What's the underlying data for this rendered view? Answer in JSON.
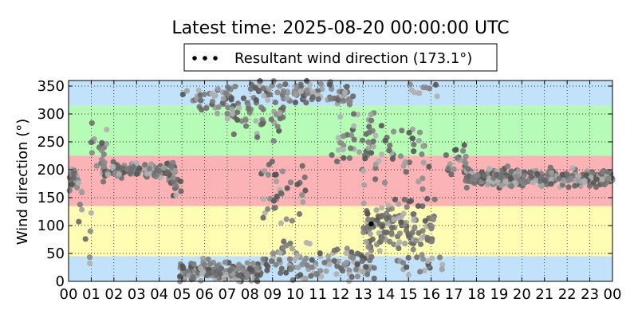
{
  "chart_data": {
    "type": "scatter",
    "title": "Latest time: 2025-08-20 00:00:00 UTC",
    "ylabel": "Wind direction (°)",
    "xlabel": "",
    "legend": {
      "label": "Resultant wind direction (173.1°)",
      "placement": "top-center"
    },
    "xlim": [
      0,
      24
    ],
    "ylim": [
      0,
      360
    ],
    "x_ticks": [
      0,
      1,
      2,
      3,
      4,
      5,
      6,
      7,
      8,
      9,
      10,
      11,
      12,
      13,
      14,
      15,
      16,
      17,
      18,
      19,
      20,
      21,
      22,
      23,
      24
    ],
    "x_tick_labels": [
      "00",
      "01",
      "02",
      "03",
      "04",
      "05",
      "06",
      "07",
      "08",
      "09",
      "10",
      "11",
      "12",
      "13",
      "14",
      "15",
      "16",
      "17",
      "18",
      "19",
      "20",
      "21",
      "22",
      "23",
      "00"
    ],
    "y_ticks": [
      0,
      50,
      100,
      150,
      200,
      250,
      300,
      350
    ],
    "y_tick_labels": [
      "0",
      "50",
      "100",
      "150",
      "200",
      "250",
      "300",
      "350"
    ],
    "grid": true,
    "bands": [
      {
        "from": 0,
        "to": 45,
        "color": "#c2e2fb"
      },
      {
        "from": 45,
        "to": 135,
        "color": "#fffdb4"
      },
      {
        "from": 135,
        "to": 225,
        "color": "#fcb3b5"
      },
      {
        "from": 225,
        "to": 315,
        "color": "#b6fcb6"
      },
      {
        "from": 315,
        "to": 360,
        "color": "#c2e2fb"
      }
    ],
    "highlight_point": {
      "x": 13.35,
      "y": 103,
      "color": "#000000"
    },
    "points_clusters": [
      {
        "x": [
          0.0,
          0.45
        ],
        "center": 185,
        "spread": 18,
        "n": 40
      },
      {
        "x": [
          0.4,
          1.0
        ],
        "center": 95,
        "spread": 60,
        "n": 10
      },
      {
        "x": [
          1.0,
          1.7
        ],
        "center": 230,
        "spread": 45,
        "n": 18
      },
      {
        "x": [
          1.5,
          4.7
        ],
        "center": 200,
        "spread": 12,
        "n": 120
      },
      {
        "x": [
          4.4,
          5.0
        ],
        "center": 170,
        "spread": 35,
        "n": 14
      },
      {
        "x": [
          4.9,
          8.5
        ],
        "center": 18,
        "spread": 16,
        "n": 150
      },
      {
        "x": [
          5.0,
          7.5
        ],
        "center": 330,
        "spread": 22,
        "n": 40
      },
      {
        "x": [
          7.0,
          9.5
        ],
        "center": 300,
        "spread": 35,
        "n": 50
      },
      {
        "x": [
          8.0,
          12.5
        ],
        "center": 335,
        "spread": 22,
        "n": 90
      },
      {
        "x": [
          8.5,
          13.5
        ],
        "center": 35,
        "spread": 30,
        "n": 120
      },
      {
        "x": [
          8.5,
          10.5
        ],
        "center": 150,
        "spread": 55,
        "n": 35
      },
      {
        "x": [
          11.5,
          13.5
        ],
        "center": 260,
        "spread": 50,
        "n": 40
      },
      {
        "x": [
          13.0,
          16.2
        ],
        "center": 100,
        "spread": 35,
        "n": 130
      },
      {
        "x": [
          13.0,
          16.0
        ],
        "center": 230,
        "spread": 60,
        "n": 45
      },
      {
        "x": [
          14.5,
          16.5
        ],
        "center": 30,
        "spread": 20,
        "n": 20
      },
      {
        "x": [
          15.0,
          16.5
        ],
        "center": 345,
        "spread": 12,
        "n": 10
      },
      {
        "x": [
          16.5,
          17.6
        ],
        "center": 215,
        "spread": 30,
        "n": 20
      },
      {
        "x": [
          17.5,
          24.0
        ],
        "center": 185,
        "spread": 14,
        "n": 300
      }
    ],
    "point_colors": [
      "#555555",
      "#707070",
      "#8a8a8a",
      "#a0a0a0",
      "#666666",
      "#7d7d7d",
      "#b0b0b0"
    ]
  }
}
